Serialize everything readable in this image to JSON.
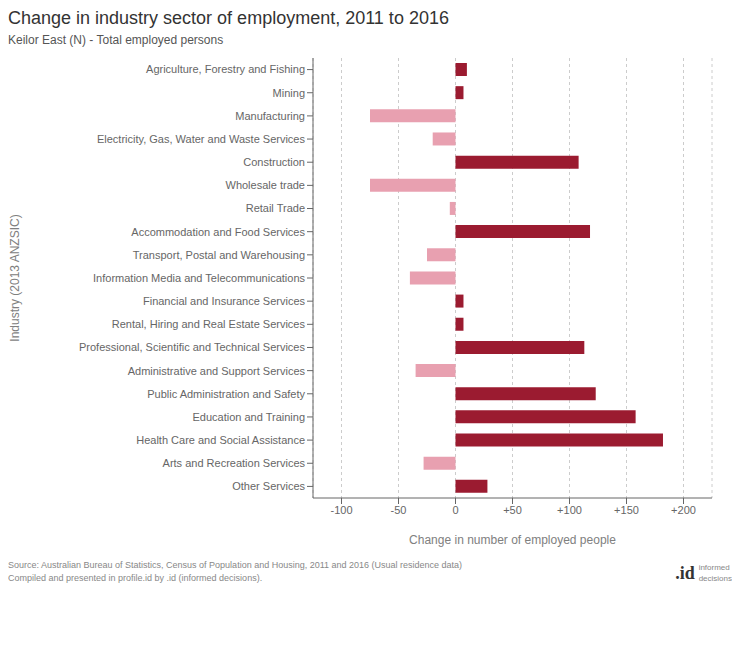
{
  "chart_data": {
    "type": "bar",
    "orientation": "horizontal",
    "title": "Change in industry sector of employment, 2011 to 2016",
    "subtitle": "Keilor East (N) - Total employed persons",
    "xlabel": "Change in number of employed people",
    "ylabel": "Industry (2013 ANZSIC)",
    "categories": [
      "Agriculture, Forestry and Fishing",
      "Mining",
      "Manufacturing",
      "Electricity, Gas, Water and Waste Services",
      "Construction",
      "Wholesale trade",
      "Retail Trade",
      "Accommodation and Food Services",
      "Transport, Postal and Warehousing",
      "Information Media and Telecommunications",
      "Financial and Insurance Services",
      "Rental, Hiring and Real Estate Services",
      "Professional, Scientific and Technical Services",
      "Administrative and Support Services",
      "Public Administration and Safety",
      "Education and Training",
      "Health Care and Social Assistance",
      "Arts and Recreation Services",
      "Other Services"
    ],
    "values": [
      10,
      7,
      -75,
      -20,
      108,
      -75,
      -5,
      118,
      -25,
      -40,
      7,
      7,
      113,
      -35,
      123,
      158,
      182,
      -28,
      28
    ],
    "colors": [
      "#9B1B30",
      "#9B1B30",
      "#E8A0B0",
      "#E8A0B0",
      "#9B1B30",
      "#E8A0B0",
      "#E8A0B0",
      "#9B1B30",
      "#E8A0B0",
      "#E8A0B0",
      "#9B1B30",
      "#9B1B30",
      "#9B1B30",
      "#E8A0B0",
      "#9B1B30",
      "#9B1B30",
      "#9B1B30",
      "#E8A0B0",
      "#9B1B30"
    ],
    "xlim": [
      -125,
      225
    ],
    "xticks": [
      -100,
      -50,
      0,
      {
        "value": 50,
        "label": "+50"
      },
      {
        "value": 100,
        "label": "+100"
      },
      {
        "value": 150,
        "label": "+150"
      },
      {
        "value": 200,
        "label": "+200"
      }
    ],
    "grid": true,
    "annotations": [
      "Source: Australian Bureau of Statistics, Census of Population and Housing, 2011 and 2016 (Usual residence data)\nCompiled and presented in profile.id by .id (informed decisions).",
      ".id",
      "informed\ndecisions"
    ]
  }
}
